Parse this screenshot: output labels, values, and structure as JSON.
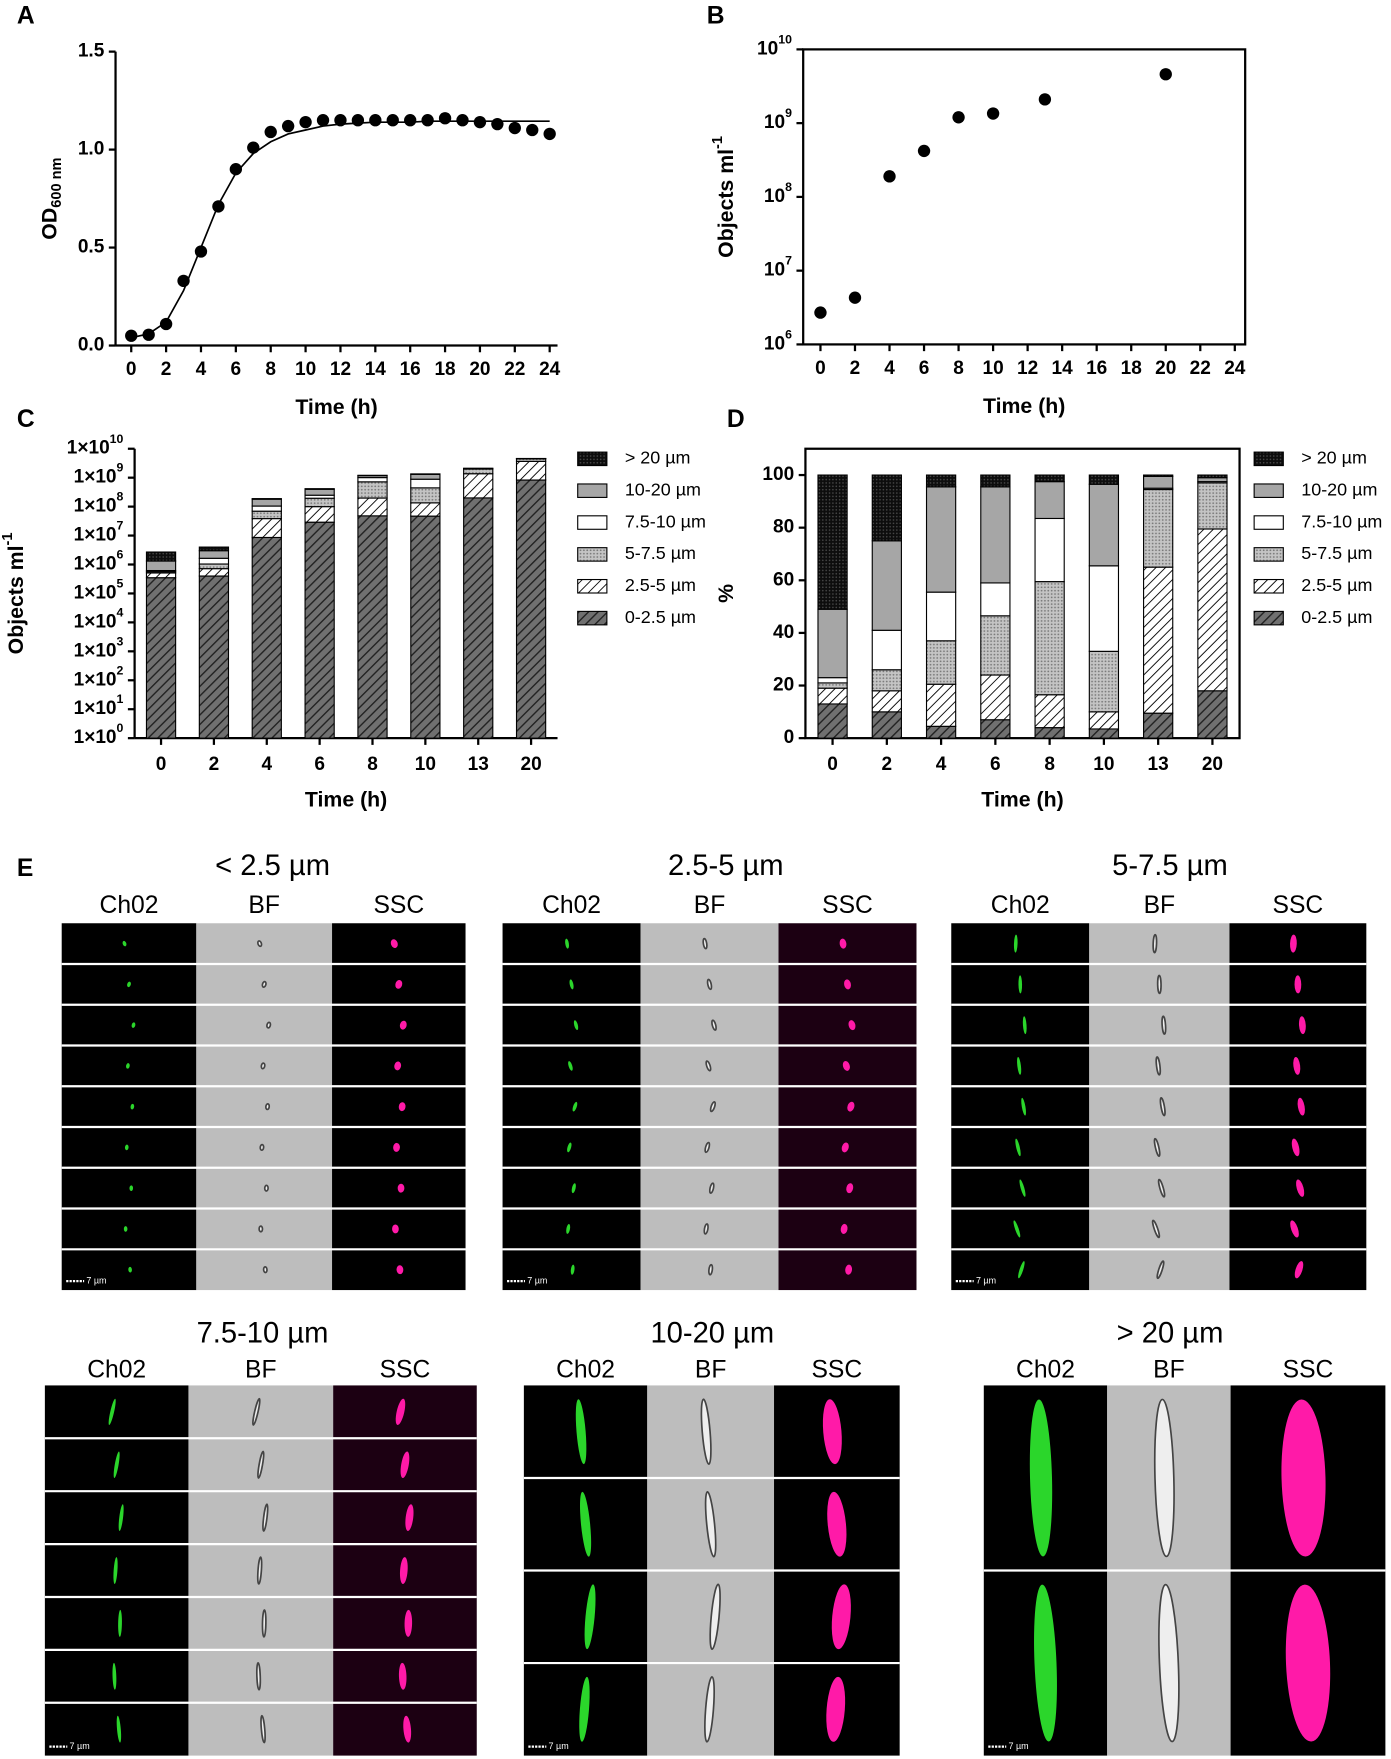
{
  "chart_data": [
    {
      "type": "scatter",
      "panel": "A",
      "x_label": "Time (h)",
      "y_label": "OD",
      "y_label_sub": "600 nm",
      "frame": "axes",
      "color": "#000000",
      "x": [
        0,
        1,
        2,
        3,
        4,
        5,
        6,
        7,
        8,
        9,
        10,
        11,
        12,
        13,
        14,
        15,
        16,
        17,
        18,
        19,
        20,
        21,
        22,
        23,
        24
      ],
      "values": [
        0.05,
        0.055,
        0.11,
        0.33,
        0.48,
        0.71,
        0.9,
        1.01,
        1.09,
        1.12,
        1.14,
        1.15,
        1.15,
        1.15,
        1.15,
        1.15,
        1.15,
        1.15,
        1.16,
        1.15,
        1.14,
        1.13,
        1.11,
        1.1,
        1.08
      ],
      "fit_values": [
        0.04,
        0.06,
        0.12,
        0.28,
        0.5,
        0.72,
        0.88,
        0.98,
        1.04,
        1.08,
        1.1,
        1.12,
        1.13,
        1.135,
        1.14,
        1.14,
        1.14,
        1.145,
        1.145,
        1.145,
        1.145,
        1.145,
        1.145,
        1.145,
        1.145
      ],
      "xlim": [
        -0.9,
        24.45
      ],
      "xticks": [
        0,
        2,
        4,
        6,
        8,
        10,
        12,
        14,
        16,
        18,
        20,
        22,
        24
      ],
      "ylim": [
        0,
        1.5
      ],
      "yticks": [
        {
          "value": 0,
          "label": "0.0"
        },
        {
          "value": 0.5,
          "label": "0.5"
        },
        {
          "value": 1,
          "label": "1.0"
        },
        {
          "value": 1.5,
          "label": "1.5"
        }
      ]
    },
    {
      "type": "scatter",
      "panel": "B",
      "x_label": "Time (h)",
      "y_label": "Objects ml",
      "y_label_sup": "-1",
      "frame": "box",
      "log_y": true,
      "color": "#000000",
      "x": [
        0,
        2,
        4,
        6,
        8,
        10,
        13,
        20
      ],
      "values": [
        2700000,
        4300000,
        190000000,
        420000000,
        1200000000,
        1350000000,
        2100000000,
        4600000000
      ],
      "xlim": [
        -1,
        24.6
      ],
      "xticks": [
        0,
        2,
        4,
        6,
        8,
        10,
        12,
        14,
        16,
        18,
        20,
        22,
        24
      ],
      "ylim": [
        1000000,
        10000000000
      ],
      "yticks": [
        {
          "value": 1000000,
          "label": "10",
          "exponent": "6"
        },
        {
          "value": 10000000,
          "label": "10",
          "exponent": "7"
        },
        {
          "value": 100000000,
          "label": "10",
          "exponent": "8"
        },
        {
          "value": 1000000000,
          "label": "10",
          "exponent": "9"
        },
        {
          "value": 10000000000,
          "label": "10",
          "exponent": "10"
        }
      ]
    },
    {
      "type": "stacked_bar",
      "panel": "C",
      "x_label": "Time (h)",
      "y_label": "Objects ml",
      "y_label_sup": "-1",
      "frame": "axes",
      "log_y": true,
      "legend": "right",
      "categories": [
        "0",
        "2",
        "4",
        "6",
        "8",
        "10",
        "13",
        "20"
      ],
      "series": [
        {
          "name": "0-2.5 µm",
          "color": "#707070",
          "pattern": "hatch-dark",
          "values": [
            350000,
            400000,
            8600000,
            29000000,
            48000000,
            47000000,
            200000000,
            830000000
          ]
        },
        {
          "name": "2.5-5 µm",
          "color": "#ffffff",
          "pattern": "hatch-light",
          "values": [
            160000,
            320000,
            30000000,
            71000000,
            150000000,
            88000000,
            1170000000,
            2830000000
          ]
        },
        {
          "name": "5-7.5 µm",
          "color": "#bbbbbb",
          "pattern": "dots-gray",
          "values": [
            54000,
            320000,
            31000000,
            95000000,
            520000000,
            310000000,
            620000000,
            810000000
          ]
        },
        {
          "name": "7.5-10 µm",
          "color": "#ffffff",
          "values": [
            54000,
            600000,
            35000000,
            53000000,
            290000000,
            440000000,
            11000000,
            23000000
          ]
        },
        {
          "name": "10-20 µm",
          "color": "#a6a6a6",
          "values": [
            700000,
            1360000,
            76000000,
            150000000,
            170000000,
            420000000,
            95000000,
            69000000
          ]
        },
        {
          "name": "> 20 µm",
          "color": "#111111",
          "pattern": "dots-black",
          "values": [
            1380000,
            1000000,
            8600000,
            19000000,
            30000000,
            47000000,
            11000000,
            46000000
          ]
        }
      ],
      "ylim": [
        1,
        10000000000
      ],
      "yticks": [
        {
          "value": 1,
          "label": "1×10",
          "exponent": "0"
        },
        {
          "value": 10,
          "label": "1×10",
          "exponent": "1"
        },
        {
          "value": 100,
          "label": "1×10",
          "exponent": "2"
        },
        {
          "value": 1000,
          "label": "1×10",
          "exponent": "3"
        },
        {
          "value": 10000,
          "label": "1×10",
          "exponent": "4"
        },
        {
          "value": 100000,
          "label": "1×10",
          "exponent": "5"
        },
        {
          "value": 1000000,
          "label": "1×10",
          "exponent": "6"
        },
        {
          "value": 10000000,
          "label": "1×10",
          "exponent": "7"
        },
        {
          "value": 100000000,
          "label": "1×10",
          "exponent": "8"
        },
        {
          "value": 1000000000,
          "label": "1×10",
          "exponent": "9"
        },
        {
          "value": 10000000000,
          "label": "1×10",
          "exponent": "10"
        }
      ]
    },
    {
      "type": "stacked_bar",
      "panel": "D",
      "x_label": "Time (h)",
      "y_label": "%",
      "frame": "box",
      "legend": "right",
      "categories": [
        "0",
        "2",
        "4",
        "6",
        "8",
        "10",
        "13",
        "20"
      ],
      "series": [
        {
          "name": "0-2.5 µm",
          "color": "#707070",
          "pattern": "hatch-dark",
          "values": [
            13,
            10,
            4.5,
            7,
            4,
            3.5,
            9.5,
            18
          ]
        },
        {
          "name": "2.5-5 µm",
          "color": "#ffffff",
          "pattern": "hatch-light",
          "values": [
            6,
            8,
            16,
            17,
            12.5,
            6.5,
            55.5,
            61.5
          ]
        },
        {
          "name": "5-7.5 µm",
          "color": "#bbbbbb",
          "pattern": "dots-gray",
          "values": [
            2,
            8,
            16.5,
            22.5,
            43,
            23,
            29.5,
            17.5
          ]
        },
        {
          "name": "7.5-10 µm",
          "color": "#ffffff",
          "values": [
            2,
            15,
            18.5,
            12.5,
            24,
            32.5,
            0.5,
            0.5
          ]
        },
        {
          "name": "10-20 µm",
          "color": "#a6a6a6",
          "values": [
            26,
            34,
            40,
            36.5,
            14,
            31,
            4.5,
            1.5
          ]
        },
        {
          "name": "> 20 µm",
          "color": "#111111",
          "pattern": "dots-black",
          "values": [
            51,
            25,
            4.5,
            4.5,
            2.5,
            3.5,
            0.5,
            1
          ]
        }
      ],
      "ylim": [
        0,
        110
      ],
      "yticks": [
        0,
        20,
        40,
        60,
        80,
        100
      ]
    }
  ],
  "panel_e": {
    "label": "E",
    "scale_bar": "7 µm",
    "groups": [
      {
        "title": "< 2.5 µm",
        "channels": [
          "Ch02",
          "BF",
          "SSC"
        ]
      },
      {
        "title": "2.5-5  µm",
        "channels": [
          "Ch02",
          "BF",
          "SSC"
        ]
      },
      {
        "title": "5-7.5 µm",
        "channels": [
          "Ch02",
          "BF",
          "SSC"
        ]
      },
      {
        "title": "7.5-10 µm",
        "channels": [
          "Ch02",
          "BF",
          "SSC"
        ]
      },
      {
        "title": "10-20 µm",
        "channels": [
          "Ch02",
          "BF",
          "SSC"
        ]
      },
      {
        "title": "> 20 µm",
        "channels": [
          "Ch02",
          "BF",
          "SSC"
        ]
      }
    ]
  }
}
